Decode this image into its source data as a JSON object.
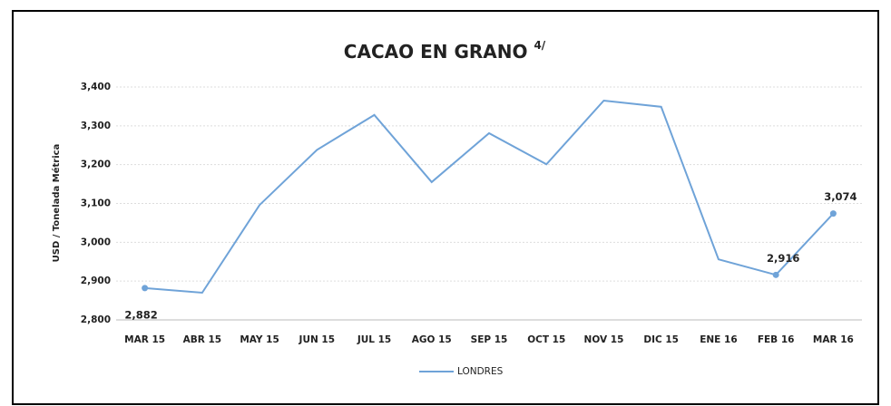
{
  "chart_data": {
    "type": "line",
    "title": "CACAO EN GRANO",
    "title_superscript": "4/",
    "ylabel": "USD / Tonelada Métrica",
    "categories": [
      "MAR 15",
      "ABR 15",
      "MAY 15",
      "JUN 15",
      "JUL 15",
      "AGO 15",
      "SEP 15",
      "OCT 15",
      "NOV 15",
      "DIC 15",
      "ENE 16",
      "FEB 16",
      "MAR 16"
    ],
    "series": [
      {
        "name": "LONDRES",
        "color": "#6fa3d8",
        "values": [
          2882,
          2870,
          3096,
          3238,
          3328,
          3155,
          3281,
          3201,
          3365,
          3349,
          2956,
          2916,
          3074
        ],
        "value_labels": [
          "2,882",
          null,
          null,
          null,
          null,
          null,
          null,
          null,
          null,
          null,
          null,
          "2,916",
          "3,074"
        ]
      }
    ],
    "ylim": [
      2800,
      3400
    ],
    "yticks": [
      {
        "value": 2800,
        "label": "2,800"
      },
      {
        "value": 2900,
        "label": "2,900"
      },
      {
        "value": 3000,
        "label": "3,000"
      },
      {
        "value": 3100,
        "label": "3,100"
      },
      {
        "value": 3200,
        "label": "3,200"
      },
      {
        "value": 3300,
        "label": "3,300"
      },
      {
        "value": 3400,
        "label": "3,400"
      }
    ],
    "grid": true,
    "legend": "bottom"
  }
}
